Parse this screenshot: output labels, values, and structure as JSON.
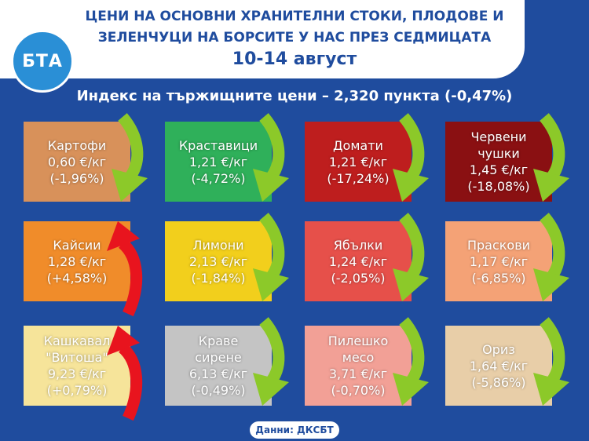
{
  "header": {
    "logo": "БТА",
    "title_lines": [
      "ЦЕНИ НА ОСНОВНИ ХРАНИТЕЛНИ СТОКИ, ПЛОДОВЕ И",
      "ЗЕЛЕНЧУЦИ НА БОРСИТЕ У НАС ПРЕЗ СЕДМИЦАТА"
    ],
    "dates": "10-14 август"
  },
  "index_line": "Индекс на тържищните цени – 2,320 пункта (-0,47%)",
  "tiles": [
    {
      "name": [
        "Картофи"
      ],
      "price": "0,60 €/кг",
      "change": "(-1,96%)"
    },
    {
      "name": [
        "Краставици"
      ],
      "price": "1,21 €/кг",
      "change": "(-4,72%)"
    },
    {
      "name": [
        "Домати"
      ],
      "price": "1,21 €/кг",
      "change": "(-17,24%)"
    },
    {
      "name": [
        "Червени",
        "чушки"
      ],
      "price": "1,45 €/кг",
      "change": "(-18,08%)"
    },
    {
      "name": [
        "Кайсии"
      ],
      "price": "1,28 €/кг",
      "change": "(+4,58%)"
    },
    {
      "name": [
        "Лимони"
      ],
      "price": "2,13 €/кг",
      "change": "(-1,84%)"
    },
    {
      "name": [
        "Ябълки"
      ],
      "price": "1,24 €/кг",
      "change": "(-2,05%)"
    },
    {
      "name": [
        "Праскови"
      ],
      "price": "1,17 €/кг",
      "change": "(-6,85%)"
    },
    {
      "name": [
        "Кашкавал",
        "\"Витоша\""
      ],
      "price": "9,23 €/кг",
      "change": "(+0,79%)"
    },
    {
      "name": [
        "Краве",
        "сирене"
      ],
      "price": "6,13 €/кг",
      "change": "(-0,49%)"
    },
    {
      "name": [
        "Пилешко",
        "месо"
      ],
      "price": "3,71 €/кг",
      "change": "(-0,70%)"
    },
    {
      "name": [
        "Ориз"
      ],
      "price": "1,64 €/кг",
      "change": "(-5,86%)"
    }
  ],
  "source": "Данни: ДКСБТ"
}
